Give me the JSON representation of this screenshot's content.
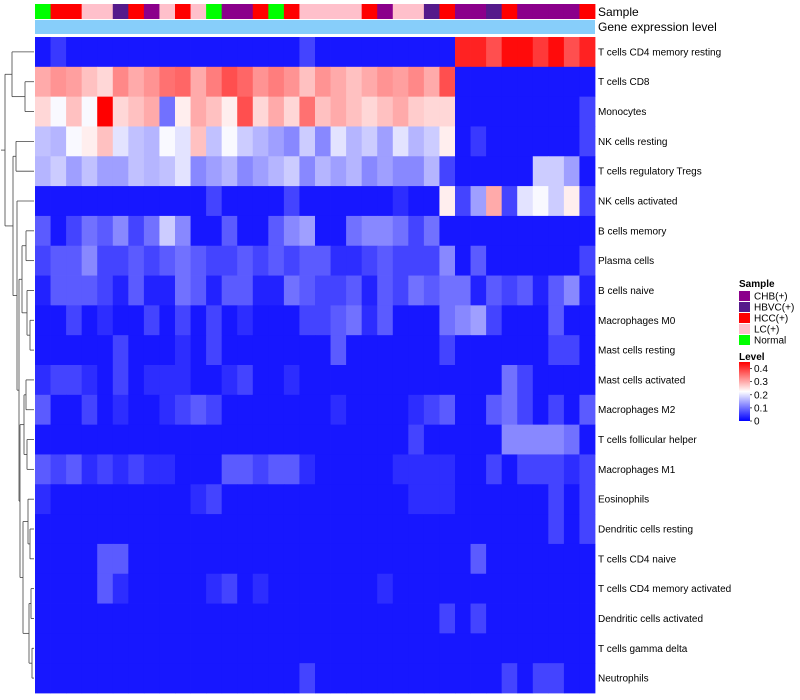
{
  "chart_data": {
    "type": "heatmap",
    "row_labels": [
      "T cells CD4 memory resting",
      "T cells CD8",
      "Monocytes",
      "NK cells resting",
      "T cells regulatory  Tregs",
      "NK cells activated",
      "B cells memory",
      "Plasma cells",
      "B cells naive",
      "Macrophages M0",
      "Mast cells resting",
      "Mast cells activated",
      "Macrophages M2",
      "T cells follicular helper",
      "Macrophages M1",
      "Eosinophils",
      "Dendritic cells resting",
      "T cells CD4 naive",
      "T cells CD4 memory activated",
      "Dendritic cells activated",
      "T cells gamma delta",
      "Neutrophils"
    ],
    "annotation_tracks": [
      "Sample",
      "Gene expression level"
    ],
    "sample_groups": [
      "Normal",
      "HCC(+)",
      "HCC(+)",
      "LC(+)",
      "LC(+)",
      "HBVC(+)",
      "HCC(+)",
      "CHB(+)",
      "LC(+)",
      "HCC(+)",
      "LC(+)",
      "Normal",
      "CHB(+)",
      "CHB(+)",
      "HCC(+)",
      "Normal",
      "HCC(+)",
      "LC(+)",
      "LC(+)",
      "LC(+)",
      "LC(+)",
      "HCC(+)",
      "CHB(+)",
      "LC(+)",
      "LC(+)",
      "HBVC(+)",
      "HCC(+)",
      "CHB(+)",
      "CHB(+)",
      "HBVC(+)",
      "HCC(+)",
      "CHB(+)",
      "CHB(+)",
      "CHB(+)",
      "CHB(+)",
      "HCC(+)"
    ],
    "expression_level_group": "low",
    "legend": {
      "sample": {
        "title": "Sample",
        "entries": [
          {
            "label": "CHB(+)",
            "color": "#8B008B"
          },
          {
            "label": "HBVC(+)",
            "color": "#551A8B"
          },
          {
            "label": "HCC(+)",
            "color": "#FF0000"
          },
          {
            "label": "LC(+)",
            "color": "#FFC0CB"
          },
          {
            "label": "Normal",
            "color": "#00FF00"
          }
        ]
      },
      "level": {
        "title": "Level",
        "ticks": [
          "0.4",
          "0.3",
          "0.2",
          "0.1",
          "0"
        ],
        "tick_values": [
          0.4,
          0.3,
          0.2,
          0.1,
          0
        ],
        "range": [
          0,
          0.45
        ],
        "colors": [
          "#0000FF",
          "#FFFFFF",
          "#FF0000"
        ]
      }
    },
    "values": [
      [
        0.02,
        0.05,
        0.02,
        0.02,
        0.02,
        0.02,
        0.02,
        0.02,
        0.02,
        0.02,
        0.02,
        0.02,
        0.02,
        0.02,
        0.02,
        0.02,
        0.02,
        0.06,
        0.02,
        0.02,
        0.02,
        0.02,
        0.02,
        0.02,
        0.02,
        0.02,
        0.02,
        0.42,
        0.42,
        0.38,
        0.44,
        0.44,
        0.4,
        0.44,
        0.38,
        0.42
      ],
      [
        0.3,
        0.32,
        0.31,
        0.28,
        0.26,
        0.33,
        0.3,
        0.32,
        0.35,
        0.36,
        0.3,
        0.34,
        0.38,
        0.36,
        0.32,
        0.34,
        0.32,
        0.28,
        0.32,
        0.3,
        0.28,
        0.3,
        0.32,
        0.31,
        0.33,
        0.3,
        0.38,
        0.02,
        0.02,
        0.02,
        0.02,
        0.02,
        0.02,
        0.02,
        0.02,
        0.02
      ],
      [
        0.26,
        0.22,
        0.28,
        0.22,
        0.45,
        0.26,
        0.28,
        0.3,
        0.1,
        0.24,
        0.3,
        0.28,
        0.24,
        0.38,
        0.26,
        0.3,
        0.26,
        0.35,
        0.28,
        0.3,
        0.28,
        0.26,
        0.28,
        0.3,
        0.27,
        0.26,
        0.26,
        0.02,
        0.02,
        0.02,
        0.02,
        0.02,
        0.02,
        0.02,
        0.02,
        0.06
      ],
      [
        0.17,
        0.16,
        0.22,
        0.24,
        0.28,
        0.2,
        0.17,
        0.16,
        0.22,
        0.2,
        0.28,
        0.17,
        0.22,
        0.18,
        0.16,
        0.14,
        0.12,
        0.18,
        0.12,
        0.2,
        0.16,
        0.18,
        0.14,
        0.2,
        0.16,
        0.18,
        0.24,
        0.02,
        0.05,
        0.02,
        0.02,
        0.02,
        0.02,
        0.02,
        0.02,
        0.06
      ],
      [
        0.16,
        0.18,
        0.14,
        0.17,
        0.14,
        0.14,
        0.17,
        0.16,
        0.17,
        0.2,
        0.12,
        0.14,
        0.16,
        0.12,
        0.14,
        0.16,
        0.18,
        0.12,
        0.16,
        0.14,
        0.16,
        0.12,
        0.14,
        0.12,
        0.12,
        0.16,
        0.06,
        0.02,
        0.02,
        0.02,
        0.02,
        0.02,
        0.18,
        0.18,
        0.14,
        0.02
      ],
      [
        0.02,
        0.02,
        0.02,
        0.02,
        0.02,
        0.02,
        0.02,
        0.02,
        0.02,
        0.02,
        0.02,
        0.06,
        0.02,
        0.02,
        0.02,
        0.02,
        0.06,
        0.02,
        0.02,
        0.02,
        0.02,
        0.02,
        0.02,
        0.04,
        0.02,
        0.02,
        0.24,
        0.06,
        0.14,
        0.3,
        0.06,
        0.2,
        0.22,
        0.18,
        0.24,
        0.06
      ],
      [
        0.08,
        0.02,
        0.06,
        0.1,
        0.08,
        0.12,
        0.06,
        0.1,
        0.18,
        0.12,
        0.02,
        0.02,
        0.08,
        0.02,
        0.02,
        0.08,
        0.12,
        0.14,
        0.02,
        0.02,
        0.1,
        0.12,
        0.12,
        0.1,
        0.06,
        0.1,
        0.02,
        0.02,
        0.02,
        0.02,
        0.02,
        0.02,
        0.02,
        0.02,
        0.02,
        0.02
      ],
      [
        0.06,
        0.08,
        0.08,
        0.12,
        0.06,
        0.06,
        0.08,
        0.06,
        0.08,
        0.1,
        0.08,
        0.06,
        0.06,
        0.08,
        0.06,
        0.08,
        0.06,
        0.08,
        0.08,
        0.04,
        0.04,
        0.06,
        0.08,
        0.06,
        0.06,
        0.06,
        0.12,
        0.02,
        0.08,
        0.02,
        0.02,
        0.02,
        0.02,
        0.02,
        0.02,
        0.06
      ],
      [
        0.03,
        0.08,
        0.08,
        0.08,
        0.06,
        0.03,
        0.08,
        0.03,
        0.03,
        0.1,
        0.08,
        0.03,
        0.08,
        0.08,
        0.03,
        0.03,
        0.1,
        0.08,
        0.06,
        0.06,
        0.08,
        0.03,
        0.08,
        0.06,
        0.1,
        0.08,
        0.1,
        0.1,
        0.03,
        0.08,
        0.06,
        0.08,
        0.03,
        0.08,
        0.12,
        0.03
      ],
      [
        0.02,
        0.02,
        0.06,
        0.02,
        0.04,
        0.02,
        0.02,
        0.06,
        0.02,
        0.06,
        0.02,
        0.06,
        0.02,
        0.04,
        0.02,
        0.02,
        0.02,
        0.06,
        0.06,
        0.08,
        0.1,
        0.04,
        0.08,
        0.02,
        0.02,
        0.02,
        0.1,
        0.12,
        0.14,
        0.06,
        0.02,
        0.02,
        0.02,
        0.08,
        0.02,
        0.02
      ],
      [
        0.02,
        0.02,
        0.02,
        0.02,
        0.02,
        0.06,
        0.02,
        0.02,
        0.02,
        0.04,
        0.02,
        0.06,
        0.02,
        0.02,
        0.02,
        0.02,
        0.02,
        0.02,
        0.02,
        0.08,
        0.02,
        0.02,
        0.02,
        0.02,
        0.02,
        0.02,
        0.06,
        0.02,
        0.02,
        0.02,
        0.02,
        0.02,
        0.02,
        0.06,
        0.06,
        0.02
      ],
      [
        0.04,
        0.06,
        0.06,
        0.04,
        0.02,
        0.06,
        0.02,
        0.04,
        0.04,
        0.04,
        0.02,
        0.02,
        0.04,
        0.06,
        0.02,
        0.02,
        0.04,
        0.02,
        0.02,
        0.02,
        0.02,
        0.02,
        0.02,
        0.02,
        0.02,
        0.02,
        0.02,
        0.02,
        0.02,
        0.02,
        0.1,
        0.06,
        0.02,
        0.02,
        0.02,
        0.02
      ],
      [
        0.08,
        0.02,
        0.02,
        0.06,
        0.02,
        0.04,
        0.02,
        0.02,
        0.04,
        0.06,
        0.08,
        0.06,
        0.02,
        0.02,
        0.02,
        0.02,
        0.02,
        0.02,
        0.02,
        0.04,
        0.02,
        0.02,
        0.02,
        0.02,
        0.04,
        0.06,
        0.08,
        0.02,
        0.02,
        0.08,
        0.1,
        0.06,
        0.02,
        0.06,
        0.02,
        0.08
      ],
      [
        0.02,
        0.02,
        0.02,
        0.02,
        0.02,
        0.02,
        0.02,
        0.02,
        0.02,
        0.02,
        0.02,
        0.02,
        0.02,
        0.02,
        0.02,
        0.02,
        0.02,
        0.02,
        0.02,
        0.02,
        0.02,
        0.02,
        0.02,
        0.02,
        0.06,
        0.02,
        0.02,
        0.02,
        0.02,
        0.02,
        0.12,
        0.12,
        0.12,
        0.12,
        0.1,
        0.02
      ],
      [
        0.08,
        0.06,
        0.08,
        0.04,
        0.06,
        0.04,
        0.06,
        0.04,
        0.04,
        0.02,
        0.02,
        0.02,
        0.08,
        0.08,
        0.06,
        0.08,
        0.08,
        0.04,
        0.02,
        0.02,
        0.02,
        0.02,
        0.02,
        0.04,
        0.04,
        0.04,
        0.04,
        0.02,
        0.02,
        0.06,
        0.02,
        0.06,
        0.06,
        0.06,
        0.04,
        0.06
      ],
      [
        0.04,
        0.02,
        0.02,
        0.02,
        0.02,
        0.02,
        0.02,
        0.02,
        0.02,
        0.02,
        0.04,
        0.06,
        0.02,
        0.02,
        0.02,
        0.02,
        0.02,
        0.02,
        0.02,
        0.02,
        0.02,
        0.02,
        0.02,
        0.02,
        0.04,
        0.04,
        0.04,
        0.02,
        0.02,
        0.02,
        0.02,
        0.02,
        0.02,
        0.06,
        0.02,
        0.06
      ],
      [
        0.02,
        0.02,
        0.02,
        0.02,
        0.02,
        0.02,
        0.02,
        0.02,
        0.02,
        0.02,
        0.02,
        0.02,
        0.02,
        0.02,
        0.02,
        0.02,
        0.02,
        0.02,
        0.02,
        0.02,
        0.02,
        0.02,
        0.02,
        0.02,
        0.02,
        0.02,
        0.02,
        0.02,
        0.02,
        0.02,
        0.02,
        0.02,
        0.02,
        0.06,
        0.02,
        0.06
      ],
      [
        0.02,
        0.02,
        0.02,
        0.02,
        0.08,
        0.08,
        0.02,
        0.02,
        0.02,
        0.02,
        0.02,
        0.02,
        0.02,
        0.02,
        0.02,
        0.02,
        0.02,
        0.02,
        0.02,
        0.02,
        0.02,
        0.02,
        0.02,
        0.02,
        0.02,
        0.02,
        0.02,
        0.02,
        0.08,
        0.02,
        0.02,
        0.02,
        0.02,
        0.02,
        0.02,
        0.02
      ],
      [
        0.02,
        0.02,
        0.02,
        0.02,
        0.08,
        0.04,
        0.02,
        0.02,
        0.02,
        0.02,
        0.02,
        0.04,
        0.06,
        0.02,
        0.04,
        0.02,
        0.02,
        0.02,
        0.02,
        0.02,
        0.02,
        0.02,
        0.04,
        0.02,
        0.02,
        0.02,
        0.02,
        0.02,
        0.02,
        0.02,
        0.02,
        0.02,
        0.02,
        0.02,
        0.02,
        0.02
      ],
      [
        0.02,
        0.02,
        0.02,
        0.02,
        0.02,
        0.02,
        0.02,
        0.02,
        0.02,
        0.02,
        0.02,
        0.02,
        0.02,
        0.02,
        0.02,
        0.02,
        0.02,
        0.02,
        0.02,
        0.02,
        0.02,
        0.02,
        0.02,
        0.02,
        0.02,
        0.02,
        0.06,
        0.02,
        0.06,
        0.02,
        0.02,
        0.02,
        0.02,
        0.02,
        0.02,
        0.02
      ],
      [
        0.02,
        0.02,
        0.02,
        0.02,
        0.02,
        0.02,
        0.02,
        0.02,
        0.02,
        0.02,
        0.02,
        0.02,
        0.02,
        0.02,
        0.02,
        0.02,
        0.02,
        0.02,
        0.02,
        0.02,
        0.02,
        0.02,
        0.02,
        0.02,
        0.02,
        0.02,
        0.02,
        0.02,
        0.02,
        0.02,
        0.02,
        0.02,
        0.02,
        0.02,
        0.02,
        0.02
      ],
      [
        0.02,
        0.02,
        0.02,
        0.02,
        0.02,
        0.02,
        0.02,
        0.02,
        0.02,
        0.02,
        0.02,
        0.02,
        0.02,
        0.02,
        0.02,
        0.02,
        0.02,
        0.06,
        0.02,
        0.02,
        0.02,
        0.02,
        0.02,
        0.02,
        0.02,
        0.02,
        0.02,
        0.02,
        0.02,
        0.02,
        0.06,
        0.02,
        0.06,
        0.06,
        0.02,
        0.02
      ]
    ]
  }
}
